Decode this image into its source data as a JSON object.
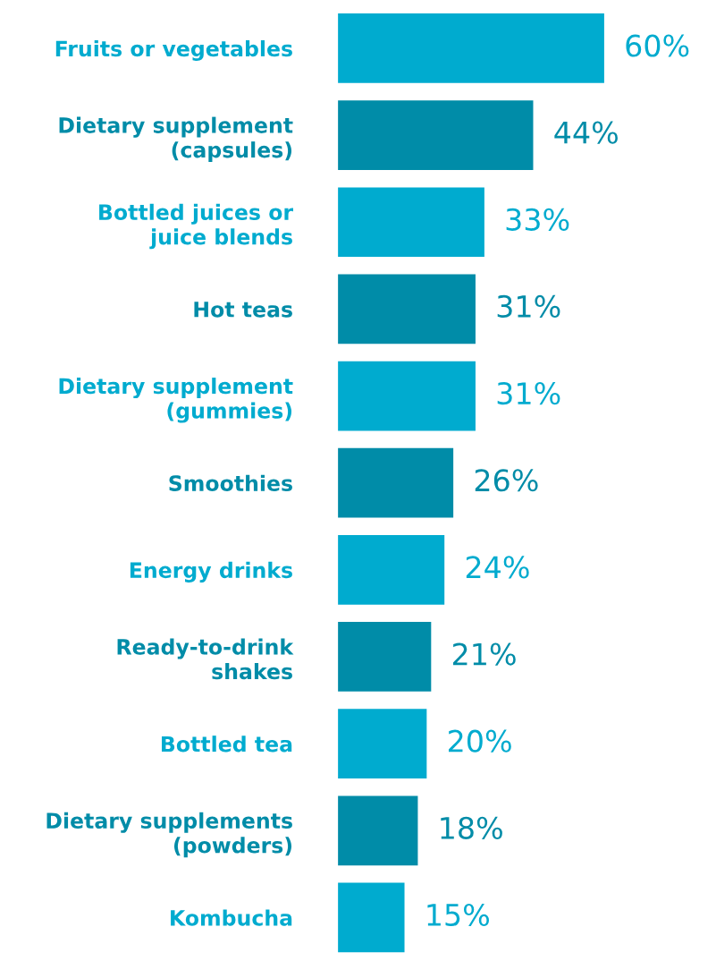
{
  "chart_data": {
    "type": "bar",
    "orientation": "horizontal",
    "categories": [
      "Fruits or vegetables",
      "Dietary supplement\n(capsules)",
      "Bottled juices or\njuice blends",
      "Hot teas",
      "Dietary supplement\n(gummies)",
      "Smoothies",
      "Energy drinks",
      "Ready-to-drink\nshakes",
      "Bottled tea",
      "Dietary supplements\n(powders)",
      "Kombucha"
    ],
    "values": [
      60,
      44,
      33,
      31,
      31,
      26,
      24,
      21,
      20,
      18,
      15
    ],
    "colors": [
      "#00abcf",
      "#008ca8",
      "#00abcf",
      "#008ca8",
      "#00abcf",
      "#008ca8",
      "#00abcf",
      "#008ca8",
      "#00abcf",
      "#008ca8",
      "#00abcf"
    ],
    "value_labels": [
      "60%",
      "44%",
      "33%",
      "31%",
      "31%",
      "26%",
      "24%",
      "21%",
      "20%",
      "18%",
      "15%"
    ],
    "grid": false,
    "legend": false,
    "tick_labels": "y"
  }
}
